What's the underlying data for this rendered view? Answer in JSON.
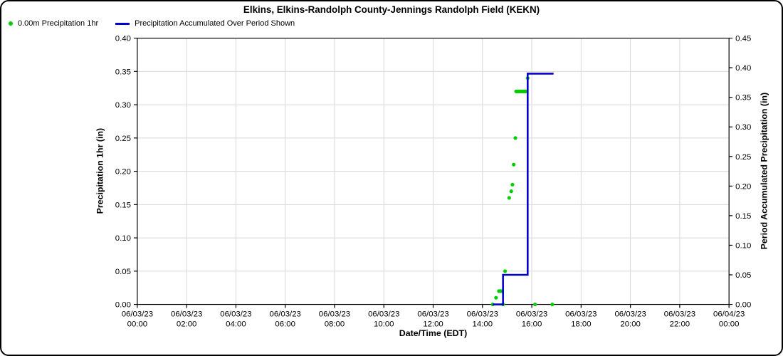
{
  "title": "Elkins, Elkins-Randolph County-Jennings Randolph Field (KEKN)",
  "legend": {
    "items": [
      {
        "label": "0.00m Precipitation 1hr",
        "marker": "dot",
        "color": "#00cc00"
      },
      {
        "label": "Precipitation Accumulated Over Period Shown",
        "marker": "line",
        "color": "#0000cc"
      }
    ]
  },
  "chart_data": {
    "type": "mixed",
    "title": "Elkins, Elkins-Randolph County-Jennings Randolph Field (KEKN)",
    "grid": true,
    "colors": {
      "grid": "#d8d8d8",
      "axis": "#000000",
      "scatter": "#00cc00",
      "line": "#0000cc"
    },
    "x_axis": {
      "label": "Date/Time (EDT)",
      "start": "06/03/23 00:00",
      "end": "06/04/23 00:00",
      "range_hours": [
        0,
        24
      ],
      "tick_interval_hours": 2,
      "ticks": [
        {
          "date": "06/03/23",
          "time": "00:00"
        },
        {
          "date": "06/03/23",
          "time": "02:00"
        },
        {
          "date": "06/03/23",
          "time": "04:00"
        },
        {
          "date": "06/03/23",
          "time": "06:00"
        },
        {
          "date": "06/03/23",
          "time": "08:00"
        },
        {
          "date": "06/03/23",
          "time": "10:00"
        },
        {
          "date": "06/03/23",
          "time": "12:00"
        },
        {
          "date": "06/03/23",
          "time": "14:00"
        },
        {
          "date": "06/03/23",
          "time": "16:00"
        },
        {
          "date": "06/03/23",
          "time": "18:00"
        },
        {
          "date": "06/03/23",
          "time": "20:00"
        },
        {
          "date": "06/03/23",
          "time": "22:00"
        },
        {
          "date": "06/04/23",
          "time": "00:00"
        }
      ]
    },
    "y_left": {
      "label": "Precipitation 1hr (in)",
      "min": 0.0,
      "max": 0.4,
      "step": 0.05
    },
    "y_right": {
      "label": "Period Accumulated Precipitation (in)",
      "min": 0.0,
      "max": 0.45,
      "step": 0.05
    },
    "series": [
      {
        "name": "0.00m Precipitation 1hr",
        "type": "scatter",
        "axis": "left",
        "color": "#00cc00",
        "points": [
          {
            "time": "14:25",
            "value": 0.0
          },
          {
            "time": "14:33",
            "value": 0.01
          },
          {
            "time": "14:40",
            "value": 0.02
          },
          {
            "time": "14:44",
            "value": 0.02
          },
          {
            "time": "14:48",
            "value": 0.02
          },
          {
            "time": "14:50",
            "value": 0.0
          },
          {
            "time": "14:55",
            "value": 0.05
          },
          {
            "time": "15:05",
            "value": 0.16
          },
          {
            "time": "15:10",
            "value": 0.17
          },
          {
            "time": "15:13",
            "value": 0.18
          },
          {
            "time": "15:16",
            "value": 0.21
          },
          {
            "time": "15:20",
            "value": 0.25
          },
          {
            "time": "15:22",
            "value": 0.32
          },
          {
            "time": "15:26",
            "value": 0.32
          },
          {
            "time": "15:30",
            "value": 0.32
          },
          {
            "time": "15:34",
            "value": 0.32
          },
          {
            "time": "15:38",
            "value": 0.32
          },
          {
            "time": "15:42",
            "value": 0.32
          },
          {
            "time": "15:46",
            "value": 0.32
          },
          {
            "time": "15:50",
            "value": 0.34
          },
          {
            "time": "16:08",
            "value": 0.0
          },
          {
            "time": "16:50",
            "value": 0.0
          }
        ]
      },
      {
        "name": "Precipitation Accumulated Over Period Shown",
        "type": "step",
        "axis": "right",
        "color": "#0000cc",
        "points": [
          {
            "time": "14:25",
            "value": 0.0
          },
          {
            "time": "14:50",
            "value": 0.0
          },
          {
            "time": "14:50",
            "value": 0.05
          },
          {
            "time": "15:50",
            "value": 0.05
          },
          {
            "time": "15:50",
            "value": 0.39
          },
          {
            "time": "16:53",
            "value": 0.39
          }
        ]
      }
    ]
  }
}
